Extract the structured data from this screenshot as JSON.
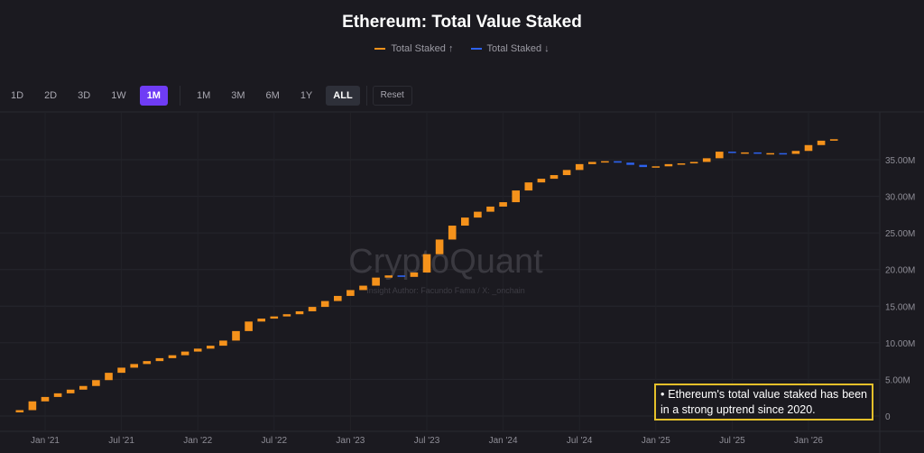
{
  "chart_data": {
    "type": "candlestick",
    "title": "Ethereum: Total Value Staked",
    "legend": [
      {
        "label": "Total Staked ↑",
        "color": "#f5921b"
      },
      {
        "label": "Total Staked ↓",
        "color": "#2d62ee"
      }
    ],
    "legend_position": "top-center",
    "y_ticks": [
      "0",
      "5.00M",
      "10.00M",
      "15.00M",
      "20.00M",
      "25.00M",
      "30.00M",
      "35.00M"
    ],
    "y_tick_values": [
      0,
      5000000,
      10000000,
      15000000,
      20000000,
      25000000,
      30000000,
      35000000
    ],
    "ylim": [
      0,
      40000000
    ],
    "x_ticks": [
      "Jan '21",
      "Jul '21",
      "Jan '22",
      "Jul '22",
      "Jan '23",
      "Jul '23",
      "Jan '24",
      "Jul '24",
      "Jan '25",
      "Jul '25",
      "Jan '26"
    ],
    "x_tick_dates": [
      "2021-01",
      "2021-07",
      "2022-01",
      "2022-07",
      "2023-01",
      "2023-07",
      "2024-01",
      "2024-07",
      "2025-01",
      "2025-07",
      "2026-01"
    ],
    "x_range": [
      "2020-11",
      "2026-05"
    ],
    "grid": true,
    "watermark": "CryptoQuant",
    "watermark_subtitle": "Insight Author: Facundo Fama / X: _onchain",
    "months": [
      "2020-11",
      "2020-12",
      "2021-01",
      "2021-02",
      "2021-03",
      "2021-04",
      "2021-05",
      "2021-06",
      "2021-07",
      "2021-08",
      "2021-09",
      "2021-10",
      "2021-11",
      "2021-12",
      "2022-01",
      "2022-02",
      "2022-03",
      "2022-04",
      "2022-05",
      "2022-06",
      "2022-07",
      "2022-08",
      "2022-09",
      "2022-10",
      "2022-11",
      "2022-12",
      "2023-01",
      "2023-02",
      "2023-03",
      "2023-04",
      "2023-05",
      "2023-06",
      "2023-07",
      "2023-08",
      "2023-09",
      "2023-10",
      "2023-11",
      "2023-12",
      "2024-01",
      "2024-02",
      "2024-03",
      "2024-04",
      "2024-05",
      "2024-06",
      "2024-07",
      "2024-08",
      "2024-09",
      "2024-10",
      "2024-11",
      "2024-12",
      "2025-01",
      "2025-02",
      "2025-03",
      "2025-04",
      "2025-05",
      "2025-06",
      "2025-07",
      "2025-08",
      "2025-09",
      "2025-10",
      "2025-11",
      "2025-12",
      "2026-01",
      "2026-02",
      "2026-03"
    ],
    "open": [
      0.5,
      0.8,
      2.0,
      2.6,
      3.1,
      3.6,
      4.1,
      4.9,
      5.9,
      6.6,
      7.1,
      7.5,
      7.9,
      8.3,
      8.8,
      9.2,
      9.6,
      10.3,
      11.6,
      12.9,
      13.3,
      13.6,
      13.9,
      14.3,
      14.9,
      15.7,
      16.4,
      17.2,
      17.8,
      18.9,
      19.2,
      19.0,
      19.6,
      22.1,
      24.1,
      26.0,
      27.1,
      27.9,
      28.6,
      29.2,
      30.8,
      31.9,
      32.4,
      32.9,
      33.6,
      34.4,
      34.7,
      34.8,
      34.6,
      34.3,
      34.0,
      34.1,
      34.4,
      34.5,
      34.7,
      35.2,
      36.1,
      36.0,
      36.0,
      35.9,
      35.9,
      35.8,
      36.2,
      37.0,
      37.6
    ],
    "close": [
      0.8,
      2.0,
      2.6,
      3.1,
      3.6,
      4.1,
      4.9,
      5.9,
      6.6,
      7.1,
      7.5,
      7.9,
      8.3,
      8.8,
      9.2,
      9.6,
      10.3,
      11.6,
      12.9,
      13.3,
      13.6,
      13.9,
      14.3,
      14.9,
      15.7,
      16.4,
      17.2,
      17.8,
      18.9,
      19.2,
      19.0,
      19.6,
      22.1,
      24.1,
      26.0,
      27.1,
      27.9,
      28.6,
      29.2,
      30.8,
      31.9,
      32.4,
      32.9,
      33.6,
      34.4,
      34.7,
      34.8,
      34.6,
      34.3,
      34.0,
      34.1,
      34.4,
      34.5,
      34.7,
      35.2,
      36.1,
      36.0,
      36.0,
      35.9,
      35.9,
      35.8,
      36.2,
      37.0,
      37.6,
      37.8
    ],
    "value_unit": "M",
    "up_color": "#f5921b",
    "down_color": "#2d62ee"
  },
  "toolbar": {
    "buttons": [
      "1D",
      "2D",
      "3D",
      "1W",
      "1M",
      "1M",
      "3M",
      "6M",
      "1Y",
      "ALL"
    ],
    "reset": "Reset",
    "active_interval": "1M",
    "active_range": "ALL"
  },
  "annotation": {
    "text": "• Ethereum's total value staked has been in a strong uptrend since 2020.",
    "border_color": "#e5c02a"
  },
  "colors": {
    "background": "#1b1a20",
    "grid": "#2a2a31",
    "axis_text": "#8f8e97"
  }
}
